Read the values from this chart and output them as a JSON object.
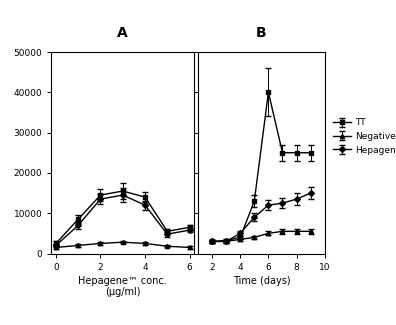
{
  "panel_A": {
    "x": [
      0,
      1,
      2,
      3,
      4,
      5,
      6
    ],
    "TT_y": [
      2500,
      8500,
      14500,
      15500,
      14000,
      5500,
      6500
    ],
    "TT_err": [
      600,
      1000,
      1500,
      2000,
      1200,
      700,
      600
    ],
    "Neg_y": [
      1500,
      2000,
      2500,
      2800,
      2500,
      1800,
      1500
    ],
    "Neg_err": [
      300,
      300,
      300,
      300,
      300,
      300,
      300
    ],
    "Hep_y": [
      2000,
      7000,
      13500,
      14500,
      12000,
      4800,
      5800
    ],
    "Hep_err": [
      400,
      900,
      1300,
      1700,
      1100,
      600,
      550
    ],
    "xlabel": "Hepagene™ conc.\n(μg/ml)",
    "xlim": [
      -0.2,
      6.2
    ],
    "xticks": [
      0,
      2,
      4,
      6
    ]
  },
  "panel_B": {
    "x": [
      2,
      3,
      4,
      5,
      6,
      7,
      8,
      9
    ],
    "TT_y": [
      3000,
      3200,
      4000,
      13000,
      40000,
      25000,
      25000,
      25000
    ],
    "TT_err": [
      300,
      300,
      400,
      1500,
      6000,
      2000,
      2000,
      2000
    ],
    "Neg_y": [
      3000,
      3000,
      3500,
      4000,
      5000,
      5500,
      5500,
      5500
    ],
    "Neg_err": [
      300,
      300,
      350,
      400,
      500,
      600,
      700,
      700
    ],
    "Hep_y": [
      3000,
      3000,
      5000,
      9000,
      12000,
      12500,
      13500,
      15000
    ],
    "Hep_err": [
      300,
      300,
      600,
      1000,
      1200,
      1300,
      1400,
      1500
    ],
    "xlabel": "Time (days)",
    "xlim": [
      1.0,
      10.0
    ],
    "xticks": [
      2,
      4,
      6,
      8,
      10
    ]
  },
  "ylim": [
    0,
    50000
  ],
  "yticks": [
    0,
    10000,
    20000,
    30000,
    40000,
    50000
  ],
  "ytick_labels": [
    "0",
    "10000",
    "20000",
    "30000",
    "40000",
    "50000"
  ],
  "color": "#000000",
  "marker_TT": "s",
  "marker_Neg": "^",
  "marker_Hep": "D",
  "markersize": 3,
  "linewidth": 1.0,
  "panel_A_label": "A",
  "panel_B_label": "B",
  "legend_labels": [
    "TT",
    "Negative",
    "Hepagene"
  ]
}
